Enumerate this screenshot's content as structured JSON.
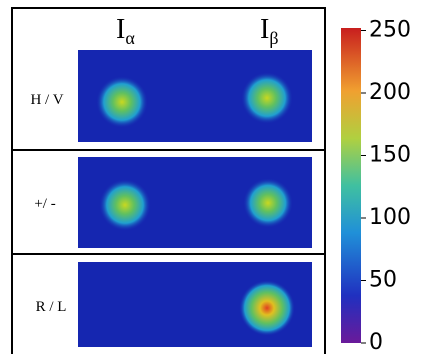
{
  "chart_data": {
    "type": "heatmap",
    "columns": [
      {
        "main": "I",
        "sub": "α"
      },
      {
        "main": "I",
        "sub": "β"
      }
    ],
    "rows": [
      "H / V",
      "+/ -",
      "R / L"
    ],
    "colorbar": {
      "lim": [
        0,
        252
      ],
      "ticks": [
        0,
        50,
        100,
        150,
        200,
        250
      ]
    }
  }
}
